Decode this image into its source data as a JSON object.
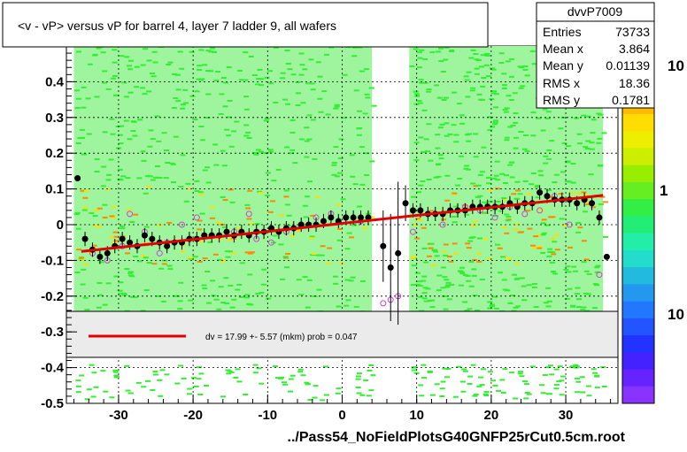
{
  "title": "<v - vP>       versus   vP for barrel 4, layer 7 ladder 9, all wafers",
  "footer": "../Pass54_NoFieldPlotsG40GNFP25rCut0.5cm.root",
  "stats": {
    "name": "dvvP7009",
    "rows": [
      {
        "label": "Entries",
        "value": "73733"
      },
      {
        "label": "Mean x",
        "value": "3.864"
      },
      {
        "label": "Mean y",
        "value": "0.01139"
      },
      {
        "label": "RMS x",
        "value": "18.36"
      },
      {
        "label": "RMS y",
        "value": "0.1781"
      }
    ]
  },
  "fit_label": "dv =   17.99 +-  5.57 (mkm) prob = 0.047",
  "palette_labels": [
    "10",
    "1",
    "10"
  ],
  "colors": {
    "fit_line": "#e00000",
    "profile_points": "#000000",
    "open_markers": "#d040d0",
    "fill_green": "#33ee33",
    "fill_yellow": "#ffdd00",
    "fill_orange": "#ff8800"
  },
  "chart_data": {
    "type": "scatter",
    "title": "<v - vP>       versus   vP for barrel 4, layer 7 ladder 9, all wafers",
    "xlabel": "",
    "ylabel": "",
    "xlim": [
      -37,
      37
    ],
    "ylim": [
      -0.5,
      0.5
    ],
    "x_ticks": [
      -30,
      -20,
      -10,
      0,
      10,
      20,
      30
    ],
    "y_ticks": [
      -0.5,
      -0.4,
      -0.3,
      -0.2,
      -0.1,
      0,
      0.1,
      0.2,
      0.3,
      0.4
    ],
    "grid": true,
    "fit_line": {
      "x": [
        -35,
        35
      ],
      "y": [
        -0.075,
        0.082
      ]
    },
    "profile": {
      "x": [
        -35.5,
        -34.5,
        -33.5,
        -32.5,
        -31.5,
        -30.5,
        -29.5,
        -28.5,
        -27.5,
        -26.5,
        -25.5,
        -24.5,
        -23.5,
        -22.5,
        -21.5,
        -20.5,
        -19.5,
        -18.5,
        -17.5,
        -16.5,
        -15.5,
        -14.5,
        -13.5,
        -12.5,
        -11.5,
        -10.5,
        -9.5,
        -8.5,
        -7.5,
        -6.5,
        -5.5,
        -4.5,
        -3.5,
        -2.5,
        -1.5,
        -0.5,
        0.5,
        1.5,
        2.5,
        3.5,
        5.5,
        6.5,
        7.5,
        8.5,
        9.5,
        10.5,
        11.5,
        12.5,
        13.5,
        14.5,
        15.5,
        16.5,
        17.5,
        18.5,
        19.5,
        20.5,
        21.5,
        22.5,
        23.5,
        24.5,
        25.5,
        26.5,
        27.5,
        28.5,
        29.5,
        30.5,
        31.5,
        32.5,
        33.5,
        34.5,
        35.5
      ],
      "y": [
        0.13,
        -0.04,
        -0.07,
        -0.09,
        -0.08,
        -0.06,
        -0.04,
        -0.05,
        -0.06,
        -0.03,
        -0.04,
        -0.05,
        -0.06,
        -0.05,
        -0.05,
        -0.04,
        -0.04,
        -0.03,
        -0.03,
        -0.03,
        -0.02,
        -0.03,
        -0.02,
        -0.03,
        -0.02,
        -0.02,
        -0.01,
        -0.02,
        -0.01,
        -0.01,
        0.0,
        0.0,
        0.0,
        0.01,
        0.02,
        0.01,
        0.02,
        0.02,
        0.02,
        0.02,
        -0.06,
        -0.12,
        -0.08,
        0.06,
        0.04,
        0.04,
        0.03,
        0.03,
        0.03,
        0.04,
        0.04,
        0.04,
        0.05,
        0.05,
        0.05,
        0.05,
        0.05,
        0.06,
        0.05,
        0.06,
        0.06,
        0.09,
        0.08,
        0.07,
        0.07,
        0.07,
        0.06,
        0.07,
        0.06,
        0.02,
        -0.09
      ],
      "yerr": [
        0.0,
        0.02,
        0.02,
        0.02,
        0.02,
        0.02,
        0.02,
        0.02,
        0.02,
        0.02,
        0.02,
        0.02,
        0.02,
        0.02,
        0.02,
        0.02,
        0.02,
        0.02,
        0.02,
        0.02,
        0.02,
        0.02,
        0.02,
        0.02,
        0.02,
        0.02,
        0.02,
        0.02,
        0.02,
        0.02,
        0.02,
        0.02,
        0.02,
        0.02,
        0.02,
        0.02,
        0.02,
        0.02,
        0.02,
        0.02,
        0.1,
        0.15,
        0.2,
        0.05,
        0.02,
        0.02,
        0.02,
        0.02,
        0.02,
        0.02,
        0.02,
        0.02,
        0.02,
        0.02,
        0.02,
        0.02,
        0.02,
        0.02,
        0.02,
        0.02,
        0.02,
        0.02,
        0.02,
        0.02,
        0.02,
        0.02,
        0.02,
        0.02,
        0.02,
        0.02,
        0.0
      ]
    },
    "open_markers": {
      "x": [
        -33.5,
        -31.5,
        -29.5,
        -28.5,
        -26.5,
        -24.5,
        -23.5,
        -21.5,
        -19.5,
        -17.5,
        -14.5,
        -12.5,
        -11.5,
        -9.5,
        -7.5,
        -5.5,
        -3.5,
        -1.5,
        0.5,
        2.5,
        5.5,
        6.5,
        7.5,
        9.5,
        11.5,
        13.5,
        16.5,
        18.5,
        20.5,
        22.5,
        24.5,
        26.5,
        28.5,
        30.5,
        32.5,
        34.5
      ],
      "y": [
        -0.08,
        -0.1,
        -0.06,
        0.03,
        -0.02,
        -0.08,
        -0.05,
        0.0,
        0.02,
        -0.03,
        -0.02,
        0.03,
        -0.04,
        -0.05,
        -0.02,
        0.0,
        0.02,
        0.03,
        0.02,
        0.01,
        -0.22,
        -0.21,
        -0.2,
        -0.02,
        0.03,
        0.0,
        0.05,
        0.04,
        0.02,
        0.05,
        0.03,
        0.04,
        0.08,
        0.0,
        0.07,
        -0.14
      ]
    },
    "filled_bands": [
      {
        "x": [
          -36,
          4
        ],
        "y": [
          -0.25,
          0.5
        ]
      },
      {
        "x": [
          9,
          35
        ],
        "y": [
          -0.25,
          0.5
        ]
      }
    ]
  }
}
